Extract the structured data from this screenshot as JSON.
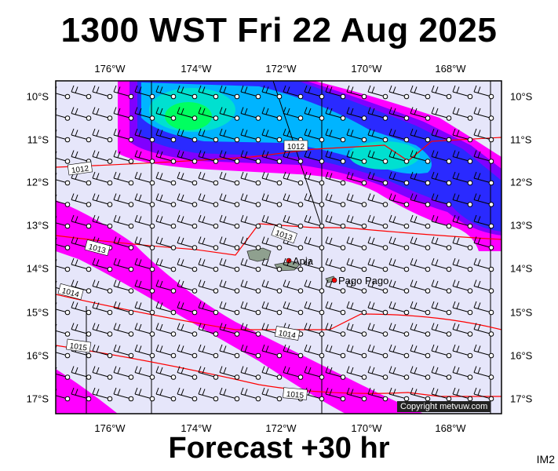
{
  "title": "1300 WST Fri 22 Aug 2025",
  "footer": "Forecast +30 hr",
  "code": "IM2",
  "credit": "Copyright metvuw.com",
  "colors": {
    "frame": "#000000",
    "background": "#e6e6fa",
    "isobar": "#ff0000",
    "wind_barb": "#000000"
  },
  "lon_ticks": [
    "176°W",
    "174°W",
    "172°W",
    "170°W",
    "168°W"
  ],
  "lat_ticks": [
    "10°S",
    "11°S",
    "12°S",
    "13°S",
    "14°S",
    "15°S",
    "16°S",
    "17°S"
  ],
  "places": [
    {
      "name": "Apia"
    },
    {
      "name": "Pago Pago"
    }
  ],
  "isobars": [
    "1012",
    "1012",
    "1013",
    "1013",
    "1014",
    "1014",
    "1015",
    "1015"
  ]
}
